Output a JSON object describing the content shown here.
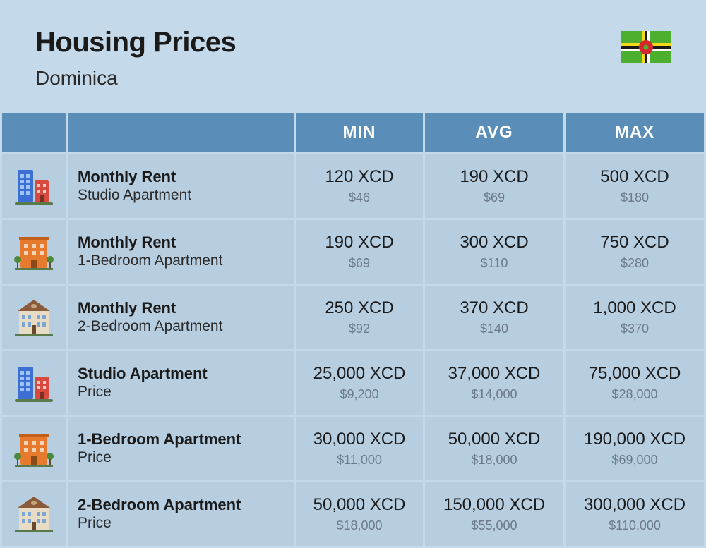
{
  "header": {
    "title": "Housing Prices",
    "country": "Dominica"
  },
  "flag": {
    "bg": "#4caf2e",
    "stripe_yellow": "#f4d81c",
    "stripe_black": "#1a1a1a",
    "stripe_white": "#ffffff",
    "circle": "#d8262f"
  },
  "table": {
    "headers": [
      "",
      "",
      "MIN",
      "AVG",
      "MAX"
    ],
    "header_bg": "#5a8db8",
    "header_fg": "#ffffff",
    "row_bg": "#b7cde0",
    "page_bg": "#c4d9e9",
    "primary_text": "#1a1a1a",
    "secondary_text": "#6a7a8a"
  },
  "icons": {
    "studio": {
      "type": "tall-buildings"
    },
    "one_bed": {
      "type": "orange-block"
    },
    "two_bed": {
      "type": "house"
    }
  },
  "rows": [
    {
      "icon": "studio",
      "title": "Monthly Rent",
      "subtitle": "Studio Apartment",
      "min_p": "120 XCD",
      "min_s": "$46",
      "avg_p": "190 XCD",
      "avg_s": "$69",
      "max_p": "500 XCD",
      "max_s": "$180"
    },
    {
      "icon": "one_bed",
      "title": "Monthly Rent",
      "subtitle": "1-Bedroom Apartment",
      "min_p": "190 XCD",
      "min_s": "$69",
      "avg_p": "300 XCD",
      "avg_s": "$110",
      "max_p": "750 XCD",
      "max_s": "$280"
    },
    {
      "icon": "two_bed",
      "title": "Monthly Rent",
      "subtitle": "2-Bedroom Apartment",
      "min_p": "250 XCD",
      "min_s": "$92",
      "avg_p": "370 XCD",
      "avg_s": "$140",
      "max_p": "1,000 XCD",
      "max_s": "$370"
    },
    {
      "icon": "studio",
      "title": "Studio Apartment",
      "subtitle": "Price",
      "min_p": "25,000 XCD",
      "min_s": "$9,200",
      "avg_p": "37,000 XCD",
      "avg_s": "$14,000",
      "max_p": "75,000 XCD",
      "max_s": "$28,000"
    },
    {
      "icon": "one_bed",
      "title": "1-Bedroom Apartment",
      "subtitle": "Price",
      "min_p": "30,000 XCD",
      "min_s": "$11,000",
      "avg_p": "50,000 XCD",
      "avg_s": "$18,000",
      "max_p": "190,000 XCD",
      "max_s": "$69,000"
    },
    {
      "icon": "two_bed",
      "title": "2-Bedroom Apartment",
      "subtitle": "Price",
      "min_p": "50,000 XCD",
      "min_s": "$18,000",
      "avg_p": "150,000 XCD",
      "avg_s": "$55,000",
      "max_p": "300,000 XCD",
      "max_s": "$110,000"
    }
  ]
}
